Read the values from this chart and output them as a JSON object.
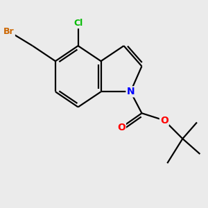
{
  "background_color": "#ebebeb",
  "atom_colors": {
    "C": "#000000",
    "N": "#0000ff",
    "O": "#ff0000",
    "Cl": "#00bb00",
    "Br": "#cc6600"
  },
  "bond_color": "#000000",
  "bond_width": 1.6
}
